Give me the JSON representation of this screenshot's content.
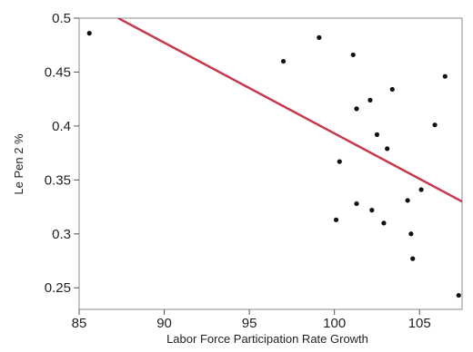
{
  "chart_data": {
    "type": "scatter",
    "title": "",
    "xlabel": "Labor Force Participation Rate Growth",
    "ylabel": "Le Pen 2 %",
    "xlim": [
      85,
      107.5
    ],
    "ylim": [
      0.23,
      0.5
    ],
    "xticks": [
      85,
      90,
      95,
      100,
      105
    ],
    "xtick_labels": [
      "85",
      "90",
      "95",
      "100",
      "105"
    ],
    "yticks": [
      0.25,
      0.3,
      0.35,
      0.4,
      0.45,
      0.5
    ],
    "ytick_labels": [
      "0.25",
      "0.3",
      "0.35",
      "0.4",
      "0.45",
      "0.5"
    ],
    "grid": false,
    "legend": "none",
    "colors": {
      "points": "#111111",
      "fit_line": "#c8384f",
      "frame": "#8c8c8c"
    },
    "points": [
      {
        "x": 85.6,
        "y": 0.486
      },
      {
        "x": 97.0,
        "y": 0.46
      },
      {
        "x": 99.1,
        "y": 0.482
      },
      {
        "x": 100.1,
        "y": 0.313
      },
      {
        "x": 100.3,
        "y": 0.367
      },
      {
        "x": 101.1,
        "y": 0.466
      },
      {
        "x": 101.3,
        "y": 0.416
      },
      {
        "x": 101.3,
        "y": 0.328
      },
      {
        "x": 102.1,
        "y": 0.424
      },
      {
        "x": 102.2,
        "y": 0.322
      },
      {
        "x": 102.5,
        "y": 0.392
      },
      {
        "x": 102.9,
        "y": 0.31
      },
      {
        "x": 103.1,
        "y": 0.379
      },
      {
        "x": 103.4,
        "y": 0.434
      },
      {
        "x": 104.3,
        "y": 0.331
      },
      {
        "x": 104.5,
        "y": 0.3
      },
      {
        "x": 104.6,
        "y": 0.277
      },
      {
        "x": 105.1,
        "y": 0.341
      },
      {
        "x": 105.9,
        "y": 0.401
      },
      {
        "x": 106.5,
        "y": 0.446
      },
      {
        "x": 107.3,
        "y": 0.243
      }
    ],
    "fit_line": {
      "x": [
        87.3,
        107.5
      ],
      "y": [
        0.5,
        0.33
      ]
    }
  }
}
